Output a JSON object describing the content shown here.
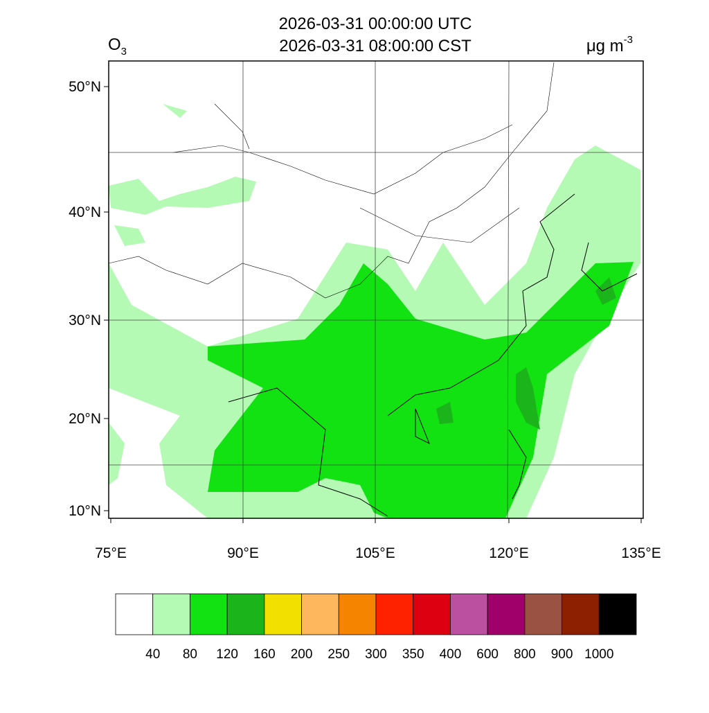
{
  "header": {
    "title_lines": [
      "2026-03-31 00:00:00 UTC",
      "2026-03-31 08:00:00 CST"
    ],
    "variable": {
      "base": "O",
      "sub": "3"
    },
    "unit": {
      "base": "μg m",
      "sup": "-3"
    }
  },
  "map": {
    "lat_labels": [
      "50°N",
      "40°N",
      "30°N",
      "20°N",
      "10°N"
    ],
    "lon_labels": [
      "75°E",
      "90°E",
      "105°E",
      "120°E",
      "135°E"
    ]
  },
  "colorbar": {
    "colors": [
      "#ffffff",
      "#b4fab4",
      "#12e212",
      "#1bb41b",
      "#f2e000",
      "#ffb75e",
      "#f58400",
      "#ff2200",
      "#dc0010",
      "#bb4fa0",
      "#a0006a",
      "#9a5242",
      "#8c2000",
      "#000000"
    ],
    "labels": [
      "40",
      "80",
      "120",
      "160",
      "200",
      "250",
      "300",
      "350",
      "400",
      "600",
      "800",
      "900",
      "1000"
    ]
  }
}
